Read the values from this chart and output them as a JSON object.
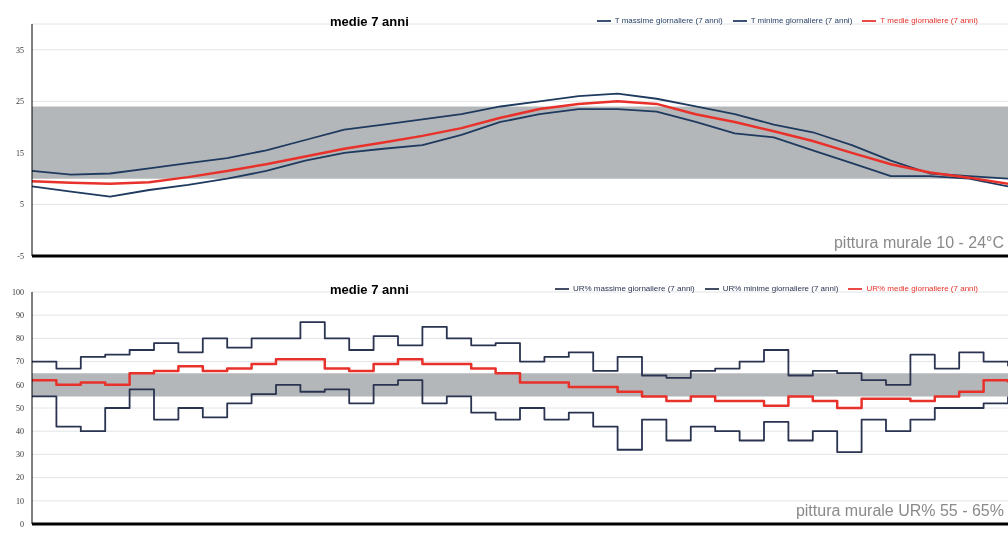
{
  "chart_data": [
    {
      "type": "line",
      "title": "medie 7 anni",
      "annotations": [
        "pittura murale 10 - 24°C"
      ],
      "categories": [
        null,
        null,
        null,
        null,
        null,
        null,
        null,
        null,
        null,
        null,
        null,
        null,
        null,
        null,
        null,
        null,
        null,
        null,
        null,
        null,
        null,
        null,
        null,
        null,
        null,
        null
      ],
      "series": [
        {
          "name": "T massime giornaliere (7 anni)",
          "color": "#1f3a5f",
          "values": [
            11.5,
            10.8,
            11,
            12,
            13,
            14,
            15.5,
            17.5,
            19.5,
            20.5,
            21.5,
            22.5,
            24,
            25,
            26,
            26.5,
            25.5,
            24,
            22.5,
            20.5,
            19,
            16.5,
            13.5,
            11,
            10.5,
            10
          ]
        },
        {
          "name": "T minime giornaliere  (7 anni)",
          "color": "#1f3a5f",
          "values": [
            8.5,
            7.5,
            6.5,
            7.8,
            8.8,
            10,
            11.5,
            13.5,
            15,
            15.8,
            16.5,
            18.5,
            21,
            22.5,
            23.5,
            23.5,
            23,
            21,
            18.8,
            18,
            15.5,
            13,
            10.5,
            10.5,
            10,
            8.5
          ]
        },
        {
          "name": "T medie giornaliere  (7 anni)",
          "color": "#e8312a",
          "values": [
            9.5,
            9.2,
            9,
            9.3,
            10.3,
            11.5,
            12.8,
            14.3,
            15.8,
            17,
            18.3,
            19.8,
            21.8,
            23.5,
            24.5,
            25,
            24.5,
            22.5,
            21,
            19.2,
            17.3,
            15,
            12.8,
            11.2,
            10.2,
            9
          ]
        }
      ],
      "ylim": [
        -5,
        40
      ],
      "yticks": [
        -5,
        5,
        15,
        25,
        35
      ],
      "grid": "y",
      "legend": "top right",
      "tick_labels": "y",
      "bands": [
        {
          "axis": "y",
          "from": 10,
          "to": 24,
          "color": "#b4b7b9"
        }
      ]
    },
    {
      "type": "step",
      "title": "medie 7 anni",
      "annotations": [
        "pittura murale UR% 55 - 65%"
      ],
      "categories": [
        null,
        null,
        null,
        null,
        null,
        null,
        null,
        null,
        null,
        null,
        null,
        null,
        null,
        null,
        null,
        null,
        null,
        null,
        null,
        null,
        null,
        null,
        null,
        null,
        null,
        null,
        null,
        null,
        null,
        null,
        null,
        null,
        null,
        null,
        null,
        null,
        null,
        null,
        null,
        null,
        null
      ],
      "series": [
        {
          "name": "UR% massime giornaliere  (7 anni)",
          "color": "#2a3350",
          "values": [
            70,
            67,
            72,
            73,
            75,
            78,
            74,
            80,
            76,
            80,
            80,
            87,
            80,
            75,
            81,
            77,
            85,
            80,
            77,
            78,
            70,
            72,
            74,
            66,
            72,
            64,
            63,
            66,
            67,
            70,
            75,
            64,
            66,
            65,
            62,
            60,
            73,
            67,
            74,
            70,
            68
          ]
        },
        {
          "name": "UR% minime giornaliere  (7 anni)",
          "color": "#2a3350",
          "values": [
            55,
            42,
            40,
            50,
            58,
            45,
            50,
            46,
            52,
            56,
            60,
            57,
            58,
            52,
            60,
            62,
            52,
            55,
            48,
            45,
            50,
            45,
            48,
            42,
            32,
            45,
            36,
            42,
            40,
            36,
            44,
            36,
            40,
            31,
            45,
            40,
            45,
            50,
            50,
            52,
            55
          ]
        },
        {
          "name": "UR% medie giornaliere  (7 anni)",
          "color": "#e8312a",
          "values": [
            62,
            60,
            61,
            60,
            65,
            66,
            68,
            66,
            67,
            69,
            71,
            71,
            67,
            66,
            69,
            71,
            69,
            69,
            67,
            65,
            61,
            61,
            59,
            59,
            57,
            55,
            53,
            55,
            53,
            53,
            51,
            55,
            53,
            50,
            54,
            54,
            53,
            55,
            57,
            62,
            61
          ]
        }
      ],
      "ylim": [
        0,
        100
      ],
      "yticks": [
        0,
        10,
        20,
        30,
        40,
        50,
        60,
        70,
        80,
        90,
        100
      ],
      "grid": "y",
      "legend": "top right",
      "tick_labels": "y",
      "bands": [
        {
          "axis": "y",
          "from": 55,
          "to": 65,
          "color": "#b4b7b9"
        }
      ]
    }
  ]
}
